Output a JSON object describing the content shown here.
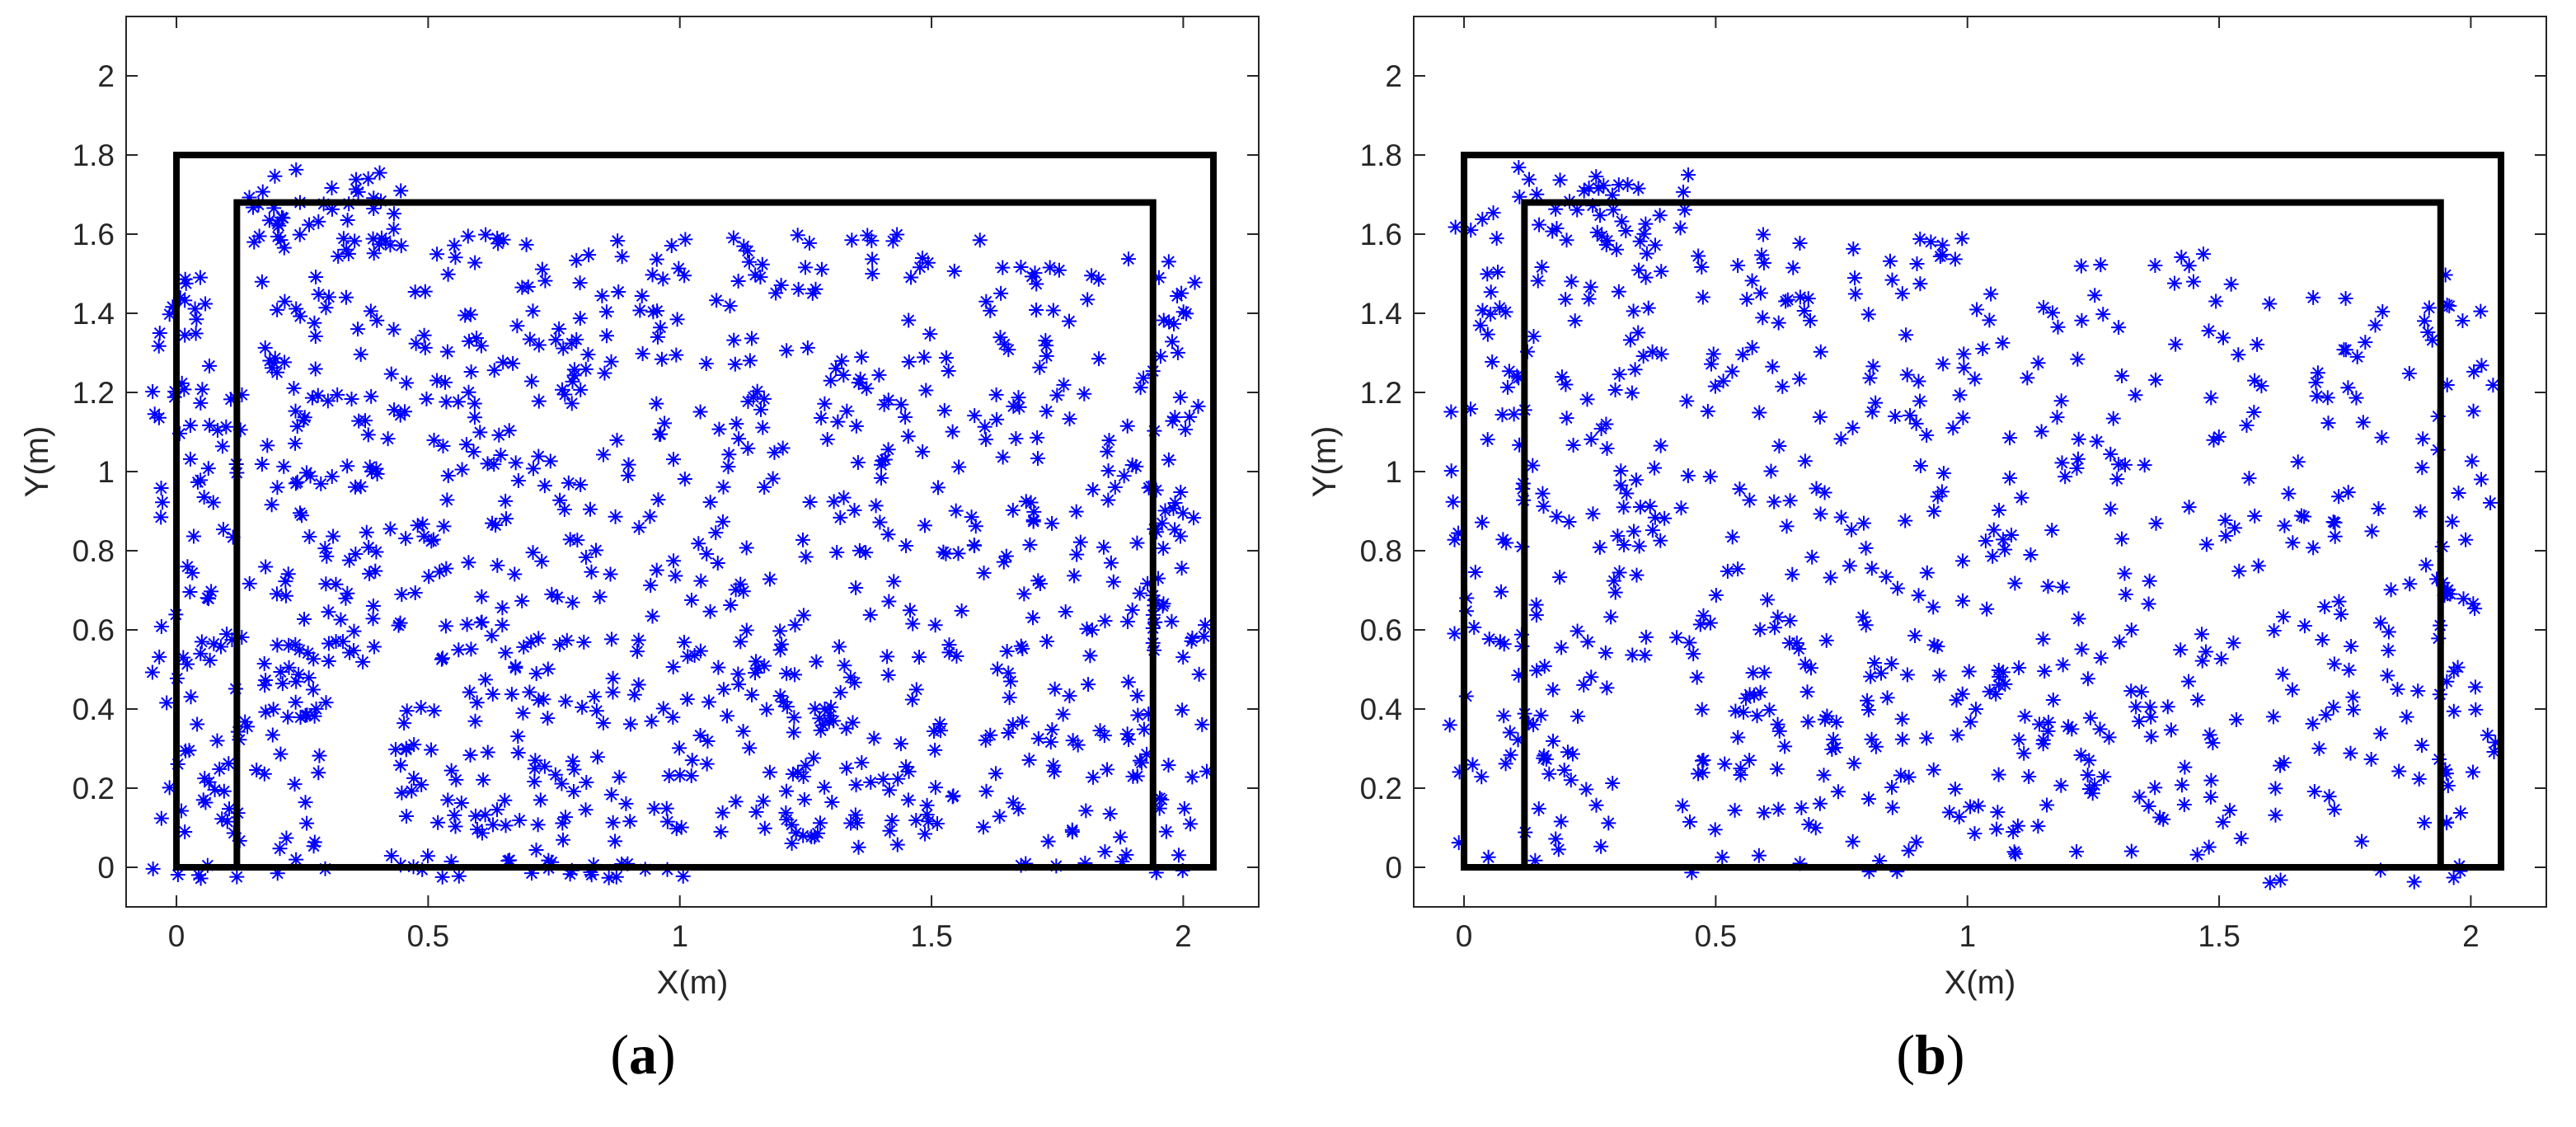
{
  "chart_data": [
    {
      "type": "scatter",
      "panel_label": "a",
      "xlabel": "X(m)",
      "ylabel": "Y(m)",
      "xlim": [
        -0.1,
        2.15
      ],
      "ylim": [
        -0.1,
        2.15
      ],
      "xticks": [
        "0",
        "0.5",
        "1",
        "1.5",
        "2"
      ],
      "yticks": [
        "0",
        "0.2",
        "0.4",
        "0.6",
        "0.8",
        "1",
        "1.2",
        "1.4",
        "1.6",
        "1.8",
        "2"
      ],
      "xtick_values": [
        0,
        0.5,
        1,
        1.5,
        2
      ],
      "ytick_values": [
        0,
        0.2,
        0.4,
        0.6,
        0.8,
        1,
        1.2,
        1.4,
        1.6,
        1.8,
        2
      ],
      "marker": "asterisk",
      "marker_color": "#0000ff",
      "point_count_estimate": 1200,
      "outer_boundary": {
        "x": [
          0,
          2.06
        ],
        "y": [
          0,
          1.8
        ]
      },
      "inner_boundary": {
        "x": [
          0.12,
          1.94
        ],
        "y": [
          0,
          1.68
        ]
      },
      "density_regions": [
        {
          "x": [
            -0.05,
            0.12
          ],
          "y": [
            -0.03,
            1.55
          ],
          "points": 95
        },
        {
          "x": [
            0.1,
            0.45
          ],
          "y": [
            1.55,
            1.77
          ],
          "points": 45
        },
        {
          "x": [
            0.12,
            0.4
          ],
          "y": [
            0.5,
            1.6
          ],
          "points": 110
        },
        {
          "x": [
            0.12,
            0.3
          ],
          "y": [
            -0.03,
            0.5
          ],
          "points": 40
        },
        {
          "x": [
            0.42,
            1.02
          ],
          "y": [
            0.55,
            1.6
          ],
          "points": 190
        },
        {
          "x": [
            0.42,
            1.02
          ],
          "y": [
            -0.03,
            0.55
          ],
          "points": 130
        },
        {
          "x": [
            1.02,
            1.6
          ],
          "y": [
            0.55,
            1.6
          ],
          "points": 150
        },
        {
          "x": [
            1.02,
            1.55
          ],
          "y": [
            0.05,
            0.55
          ],
          "points": 110
        },
        {
          "x": [
            1.6,
            2.02
          ],
          "y": [
            0.45,
            1.55
          ],
          "points": 120
        },
        {
          "x": [
            1.6,
            2.0
          ],
          "y": [
            -0.05,
            0.45
          ],
          "points": 55
        },
        {
          "x": [
            1.93,
            2.05
          ],
          "y": [
            0.1,
            1.5
          ],
          "points": 40
        }
      ]
    },
    {
      "type": "scatter",
      "panel_label": "b",
      "xlabel": "X(m)",
      "ylabel": "Y(m)",
      "xlim": [
        -0.1,
        2.15
      ],
      "ylim": [
        -0.1,
        2.15
      ],
      "xticks": [
        "0",
        "0.5",
        "1",
        "1.5",
        "2"
      ],
      "yticks": [
        "0",
        "0.2",
        "0.4",
        "0.6",
        "0.8",
        "1",
        "1.2",
        "1.4",
        "1.6",
        "1.8",
        "2"
      ],
      "xtick_values": [
        0,
        0.5,
        1,
        1.5,
        2
      ],
      "ytick_values": [
        0,
        0.2,
        0.4,
        0.6,
        0.8,
        1,
        1.2,
        1.4,
        1.6,
        1.8,
        2
      ],
      "marker": "asterisk",
      "marker_color": "#0000ff",
      "point_count_estimate": 800,
      "outer_boundary": {
        "x": [
          0,
          2.06
        ],
        "y": [
          0,
          1.8
        ]
      },
      "inner_boundary": {
        "x": [
          0.12,
          1.94
        ],
        "y": [
          0,
          1.68
        ]
      },
      "density_regions": [
        {
          "x": [
            -0.03,
            0.12
          ],
          "y": [
            0.0,
            1.7
          ],
          "points": 60
        },
        {
          "x": [
            0.1,
            0.45
          ],
          "y": [
            1.55,
            1.77
          ],
          "points": 35
        },
        {
          "x": [
            0.12,
            0.4
          ],
          "y": [
            0.5,
            1.6
          ],
          "points": 80
        },
        {
          "x": [
            0.12,
            0.3
          ],
          "y": [
            -0.02,
            0.5
          ],
          "points": 30
        },
        {
          "x": [
            0.42,
            1.0
          ],
          "y": [
            0.55,
            1.6
          ],
          "points": 130
        },
        {
          "x": [
            0.42,
            1.0
          ],
          "y": [
            -0.02,
            0.55
          ],
          "points": 85
        },
        {
          "x": [
            1.0,
            1.6
          ],
          "y": [
            0.55,
            1.55
          ],
          "points": 95
        },
        {
          "x": [
            1.0,
            1.55
          ],
          "y": [
            0.03,
            0.55
          ],
          "points": 85
        },
        {
          "x": [
            1.6,
            2.02
          ],
          "y": [
            0.45,
            1.5
          ],
          "points": 75
        },
        {
          "x": [
            1.6,
            2.0
          ],
          "y": [
            -0.05,
            0.45
          ],
          "points": 40
        },
        {
          "x": [
            1.93,
            2.05
          ],
          "y": [
            0.1,
            1.5
          ],
          "points": 25
        }
      ]
    }
  ]
}
